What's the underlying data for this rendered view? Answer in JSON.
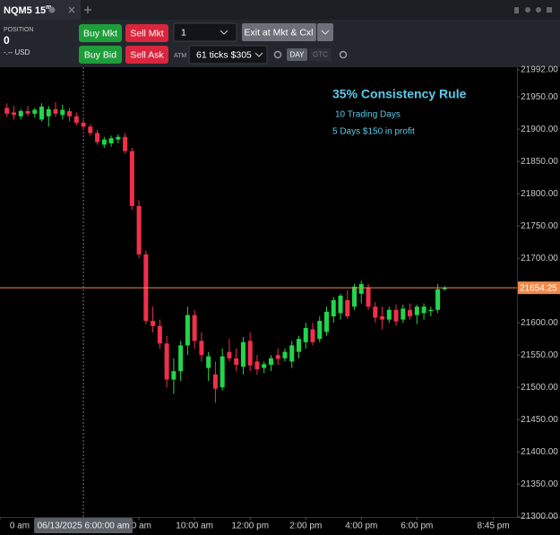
{
  "tab": {
    "symbol": "NQM5",
    "interval": "15",
    "interval_unit": "m"
  },
  "position": {
    "label": "POSITION",
    "quantity": "0",
    "pnl": "-.-- USD"
  },
  "order_bar": {
    "buy_mkt": "Buy Mkt",
    "sell_mkt": "Sell Mkt",
    "buy_bid": "Buy Bid",
    "sell_ask": "Sell Ask",
    "quantity": "1",
    "exit": "Exit at Mkt & Cxl",
    "atm_label": "ATM",
    "atm": "61 ticks $305",
    "tif_day": "DAY",
    "tif_gtc": "GTC"
  },
  "chart_data": {
    "type": "candlestick",
    "annotation_title": "35% Consistency Rule",
    "annotation_lines": [
      "10 Trading Days",
      "5 Days $150 in profit"
    ],
    "x": [
      3.25,
      3.5,
      3.75,
      4,
      4.25,
      4.5,
      4.75,
      5,
      5.25,
      5.5,
      5.75,
      6,
      6.25,
      6.5,
      6.75,
      7,
      7.25,
      7.5,
      7.75,
      8,
      8.25,
      8.5,
      8.75,
      9,
      9.25,
      9.5,
      9.75,
      10,
      10.25,
      10.5,
      10.75,
      11,
      11.25,
      11.5,
      11.75,
      12,
      12.25,
      12.5,
      12.75,
      13,
      13.25,
      13.5,
      13.75,
      14,
      14.25,
      14.5,
      14.75,
      15,
      15.25,
      15.5,
      15.75,
      16,
      16.25,
      16.5,
      16.75,
      17,
      17.25,
      17.5,
      17.75,
      18,
      18.25,
      18.5,
      18.75,
      19
    ],
    "open": [
      21933,
      21926,
      21920,
      21928,
      21924,
      21915,
      21920,
      21931,
      21922,
      21928,
      21920,
      21910,
      21904,
      21894,
      21876,
      21878,
      21884,
      21888,
      21866,
      21781,
      21706,
      21603,
      21595,
      21568,
      21512,
      21525,
      21565,
      21612,
      21572,
      21530,
      21520,
      21500,
      21555,
      21545,
      21532,
      21572,
      21540,
      21530,
      21535,
      21550,
      21545,
      21540,
      21555,
      21570,
      21590,
      21575,
      21586,
      21610,
      21615,
      21635,
      21625,
      21645,
      21655,
      21625,
      21610,
      21605,
      21620,
      21605,
      21620,
      21612,
      21615,
      21618,
      21620,
      21652
    ],
    "high": [
      21940,
      21936,
      21931,
      21936,
      21933,
      21940,
      21936,
      21942,
      21938,
      21933,
      21926,
      21915,
      21908,
      21899,
      21888,
      21890,
      21892,
      21894,
      21871,
      21790,
      21712,
      21625,
      21605,
      21580,
      21545,
      21572,
      21625,
      21620,
      21585,
      21555,
      21540,
      21560,
      21575,
      21560,
      21578,
      21585,
      21550,
      21540,
      21550,
      21560,
      21560,
      21572,
      21580,
      21600,
      21600,
      21610,
      21625,
      21640,
      21645,
      21650,
      21660,
      21665,
      21660,
      21632,
      21625,
      21625,
      21628,
      21628,
      21630,
      21628,
      21630,
      21625,
      21660,
      21657
    ],
    "low": [
      21919,
      21915,
      21915,
      21920,
      21918,
      21912,
      21904,
      21919,
      21915,
      21912,
      21906,
      21899,
      21890,
      21876,
      21871,
      21873,
      21878,
      21862,
      21775,
      21700,
      21598,
      21585,
      21560,
      21500,
      21490,
      21510,
      21550,
      21560,
      21540,
      21510,
      21476,
      21495,
      21540,
      21525,
      21520,
      21525,
      21520,
      21522,
      21525,
      21535,
      21540,
      21530,
      21545,
      21560,
      21565,
      21570,
      21580,
      21600,
      21605,
      21606,
      21620,
      21630,
      21620,
      21600,
      21590,
      21600,
      21595,
      21600,
      21605,
      21598,
      21605,
      21610,
      21615,
      21650
    ],
    "close": [
      21924,
      21922,
      21928,
      21924,
      21930,
      21935,
      21931,
      21924,
      21930,
      21920,
      21910,
      21904,
      21894,
      21880,
      21884,
      21886,
      21888,
      21866,
      21781,
      21706,
      21603,
      21595,
      21568,
      21512,
      21525,
      21565,
      21612,
      21572,
      21550,
      21548,
      21498,
      21548,
      21545,
      21535,
      21570,
      21534,
      21528,
      21536,
      21545,
      21544,
      21555,
      21565,
      21575,
      21592,
      21570,
      21603,
      21617,
      21635,
      21642,
      21610,
      21656,
      21660,
      21625,
      21608,
      21605,
      21620,
      21602,
      21622,
      21610,
      21625,
      21625,
      21620,
      21652,
      21654.25
    ],
    "up_color": "#21d64a",
    "down_color": "#f0304a",
    "xlim": [
      3,
      21.6
    ],
    "xticks": [
      {
        "value": 3,
        "label": "0 am"
      },
      {
        "value": 8,
        "label": "00 am"
      },
      {
        "value": 10,
        "label": "10:00 am"
      },
      {
        "value": 12,
        "label": "12:00 pm"
      },
      {
        "value": 14,
        "label": "2:00 pm"
      },
      {
        "value": 16,
        "label": "4:00 pm"
      },
      {
        "value": 18,
        "label": "6:00 pm"
      },
      {
        "value": 20.75,
        "label": "8:45 pm"
      }
    ],
    "ylim": [
      21299,
      21996
    ],
    "yticks": [
      {
        "value": 21300,
        "label": "21300.00"
      },
      {
        "value": 21350,
        "label": "21350.00"
      },
      {
        "value": 21400,
        "label": "21400.00"
      },
      {
        "value": 21450,
        "label": "21450.00"
      },
      {
        "value": 21500,
        "label": "21500.00"
      },
      {
        "value": 21550,
        "label": "21550.00"
      },
      {
        "value": 21600,
        "label": "21600.00"
      },
      {
        "value": 21650,
        "label": "21650.00"
      },
      {
        "value": 21700,
        "label": "21700.00"
      },
      {
        "value": 21750,
        "label": "21750.00"
      },
      {
        "value": 21800,
        "label": "21800.00"
      },
      {
        "value": 21850,
        "label": "21850.00"
      },
      {
        "value": 21900,
        "label": "21900.00"
      },
      {
        "value": 21950,
        "label": "21950.00"
      },
      {
        "value": 21992,
        "label": "21992.00"
      }
    ],
    "last_price": 21654.25,
    "last_price_color": "#f08a4b",
    "crosshair": {
      "x": 6,
      "label": "06/13/2025 6:00:00 am"
    },
    "grid": false
  }
}
